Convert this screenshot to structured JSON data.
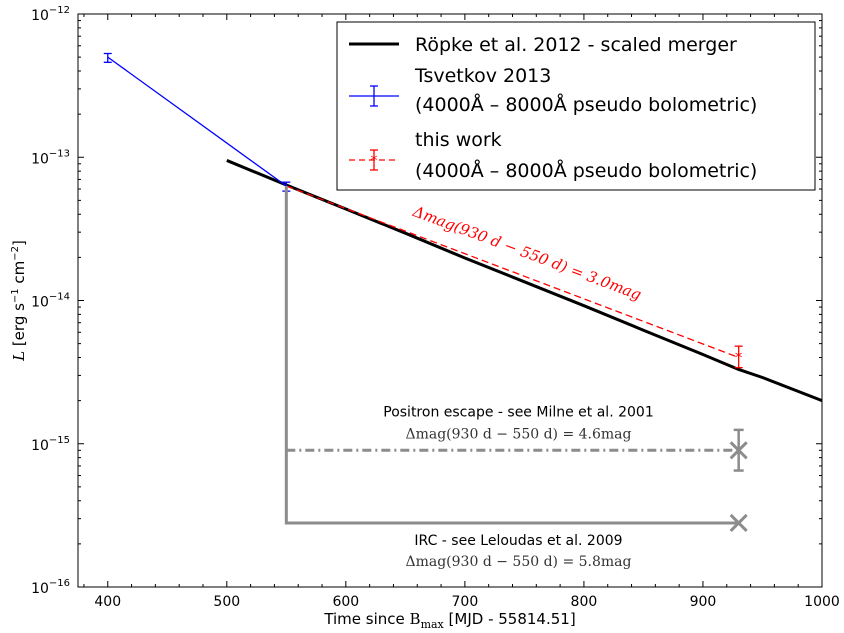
{
  "chart_data": {
    "type": "line",
    "yscale": "log",
    "xlim": [
      375,
      1000
    ],
    "ylim": [
      1e-16,
      1e-12
    ],
    "xticks": [
      400,
      500,
      600,
      700,
      800,
      900,
      1000
    ],
    "xtick_labels": [
      "400",
      "500",
      "600",
      "700",
      "800",
      "900",
      "1000"
    ],
    "yticks": [
      1e-16,
      1e-15,
      1e-14,
      1e-13,
      1e-12
    ],
    "ytick_labels": [
      {
        "base": "10",
        "exp": "−16"
      },
      {
        "base": "10",
        "exp": "−15"
      },
      {
        "base": "10",
        "exp": "−14"
      },
      {
        "base": "10",
        "exp": "−13"
      },
      {
        "base": "10",
        "exp": "−12"
      }
    ],
    "xlabel": {
      "pre": "Time since ",
      "b": "B",
      "sub": "max",
      "post": " [MJD - 55814.51]"
    },
    "ylabel": {
      "l": "L",
      "text": " [erg s",
      "e1": "−1",
      "text2": " cm",
      "e2": "−2",
      "end": "]"
    },
    "legend": {
      "position": "top-right",
      "entries": [
        {
          "label_lines": [
            "Röpke et al. 2012 - scaled merger"
          ],
          "color": "#000000",
          "style": "solid"
        },
        {
          "label_lines": [
            "Tsvetkov 2013",
            "(4000Å – 8000Å pseudo bolometric)"
          ],
          "color": "#0000ff",
          "style": "errorbar"
        },
        {
          "label_lines": [
            "this work",
            "(4000Å – 8000Å pseudo bolometric)"
          ],
          "color": "#ff0000",
          "style": "dashed-star"
        }
      ]
    },
    "series": [
      {
        "name": "Röpke et al. 2012 - scaled merger",
        "color": "#000000",
        "x": [
          500,
          550,
          600,
          650,
          700,
          750,
          800,
          850,
          900,
          930,
          950,
          1000
        ],
        "y": [
          9.5e-14,
          6.4e-14,
          4.35e-14,
          2.95e-14,
          1.98e-14,
          1.35e-14,
          9.2e-15,
          6.2e-15,
          4.2e-15,
          3.3e-15,
          2.9e-15,
          2e-15
        ]
      },
      {
        "name": "Tsvetkov 2013",
        "color": "#0000ff",
        "x": [
          400,
          550
        ],
        "y": [
          5e-13,
          6.3e-14
        ],
        "err_low": [
          4.6e-13,
          5.8e-14
        ],
        "err_high": [
          5.3e-13,
          6.7e-14
        ]
      },
      {
        "name": "this work",
        "color": "#ff0000",
        "x": [
          550,
          930
        ],
        "y": [
          6.3e-14,
          4e-15
        ],
        "err_low": [
          6.3e-14,
          3.4e-15
        ],
        "err_high": [
          6.3e-14,
          4.8e-15
        ]
      }
    ],
    "scenarios": {
      "positron": {
        "title": "Positron escape - see Milne et al. 2001",
        "delta": "Δmag(930 d − 550 d) = 4.6mag",
        "x": [
          550,
          930
        ],
        "y": 9e-16,
        "marker_y": 9e-16,
        "err_low": 6.5e-16,
        "err_high": 1.25e-15
      },
      "irc": {
        "title": "IRC - see Leloudas et al. 2009",
        "delta": "Δmag(930 d − 550 d) = 5.8mag",
        "x": [
          550,
          930
        ],
        "y": 2.8e-16
      },
      "red_label": "Δmag(930 d − 550 d) = 3.0mag",
      "drop_line": {
        "x": 550,
        "y_top": 6.3e-14,
        "y_bottom": 2.8e-16
      }
    }
  }
}
